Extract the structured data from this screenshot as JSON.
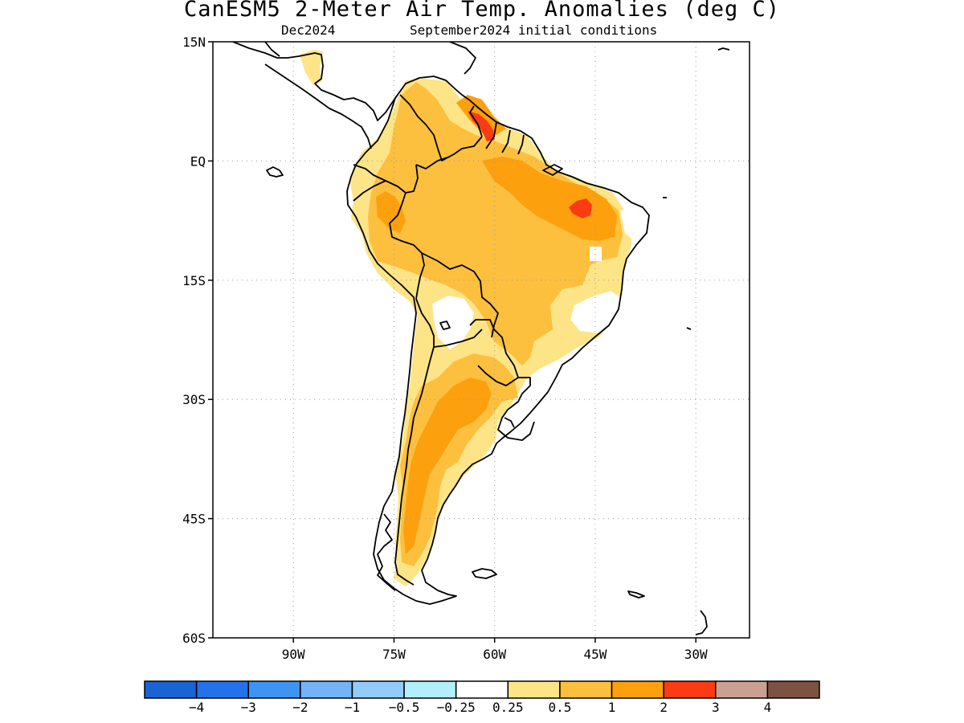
{
  "title": "CanESM5 2-Meter Air Temp. Anomalies (deg C)",
  "subtitle_left": "Dec2024",
  "subtitle_right": "September2024 initial conditions",
  "map": {
    "lon_range": [
      -102,
      -22
    ],
    "lat_range": [
      -60,
      15
    ],
    "lat_ticks": [
      {
        "value": 15,
        "label": "15N"
      },
      {
        "value": 0,
        "label": "EQ"
      },
      {
        "value": -15,
        "label": "15S"
      },
      {
        "value": -30,
        "label": "30S"
      },
      {
        "value": -45,
        "label": "45S"
      },
      {
        "value": -60,
        "label": "60S"
      }
    ],
    "lon_ticks": [
      {
        "value": -90,
        "label": "90W"
      },
      {
        "value": -75,
        "label": "75W"
      },
      {
        "value": -60,
        "label": "60W"
      },
      {
        "value": -45,
        "label": "45W"
      },
      {
        "value": -30,
        "label": "30W"
      }
    ],
    "grid": "dotted"
  },
  "colorbar": {
    "colors": [
      "#1a63d4",
      "#2372ec",
      "#3d94f3",
      "#74b3f7",
      "#92ccf8",
      "#b0effb",
      "#ffffff",
      "#fde486",
      "#fdbf3e",
      "#fca00e",
      "#fb3b13",
      "#c9a092",
      "#7c5243"
    ],
    "labels": [
      "−4",
      "−3",
      "−2",
      "−1",
      "−0.5",
      "−0.25",
      "0.25",
      "0.5",
      "1",
      "2",
      "3",
      "4"
    ]
  },
  "anomaly_colors": {
    "ge_0.25": "#fde486",
    "ge_0.5": "#fdbf3e",
    "ge_1": "#fca00e",
    "ge_2": "#fb3b13"
  }
}
